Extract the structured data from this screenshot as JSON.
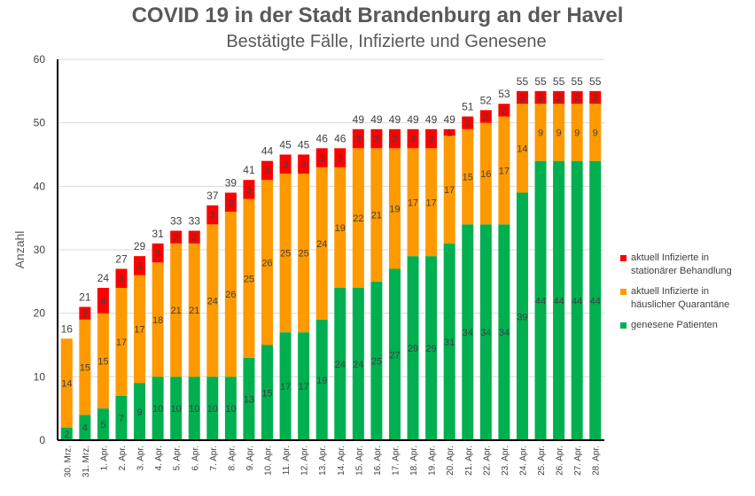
{
  "chart_data": {
    "type": "bar",
    "stacked": true,
    "title": "COVID 19 in der Stadt Brandenburg an der Havel",
    "subtitle": "Bestätigte Fälle, Infizierte und Genesene",
    "xlabel": "",
    "ylabel": "Anzahl",
    "ylim": [
      0,
      60
    ],
    "yticks": [
      0,
      10,
      20,
      30,
      40,
      50,
      60
    ],
    "grid": true,
    "legend_position": "right",
    "categories": [
      "30. Mrz.",
      "31. Mrz.",
      "1. Apr.",
      "2. Apr.",
      "3. Apr.",
      "4. Apr.",
      "5. Apr.",
      "6. Apr.",
      "7. Apr.",
      "8. Apr.",
      "9. Apr.",
      "10. Apr.",
      "11. Apr.",
      "12. Apr.",
      "13. Apr.",
      "14. Apr.",
      "15. Apr.",
      "16. Apr.",
      "17. Apr.",
      "18. Apr.",
      "19. Apr.",
      "20. Apr.",
      "21. Apr.",
      "22. Apr.",
      "23. Apr.",
      "24. Apr.",
      "25. Apr.",
      "26. Apr.",
      "27. Apr.",
      "28. Apr."
    ],
    "series": [
      {
        "name": "genesene Patienten",
        "color": "#00b050",
        "values": [
          2,
          4,
          5,
          7,
          9,
          10,
          10,
          10,
          10,
          10,
          13,
          15,
          17,
          17,
          19,
          24,
          24,
          25,
          27,
          29,
          29,
          31,
          34,
          34,
          34,
          39,
          44,
          44,
          44,
          44
        ]
      },
      {
        "name": "aktuell Infizierte in häuslicher Quarantäne",
        "color": "#ff9900",
        "values": [
          14,
          15,
          15,
          17,
          17,
          18,
          21,
          21,
          24,
          26,
          25,
          26,
          25,
          25,
          24,
          19,
          22,
          21,
          19,
          17,
          17,
          17,
          15,
          16,
          17,
          14,
          9,
          9,
          9,
          9
        ]
      },
      {
        "name": "aktuell Infizierte in stationärer Behandlung",
        "color": "#ff0000",
        "values": [
          0,
          2,
          4,
          3,
          3,
          3,
          2,
          2,
          3,
          3,
          3,
          3,
          3,
          3,
          3,
          3,
          3,
          3,
          3,
          3,
          3,
          1,
          2,
          2,
          2,
          2,
          2,
          2,
          2,
          2
        ]
      }
    ],
    "totals": [
      16,
      21,
      24,
      27,
      29,
      31,
      33,
      33,
      37,
      39,
      41,
      44,
      45,
      45,
      46,
      46,
      49,
      49,
      49,
      49,
      49,
      49,
      51,
      52,
      53,
      55,
      55,
      55,
      55,
      55
    ]
  }
}
